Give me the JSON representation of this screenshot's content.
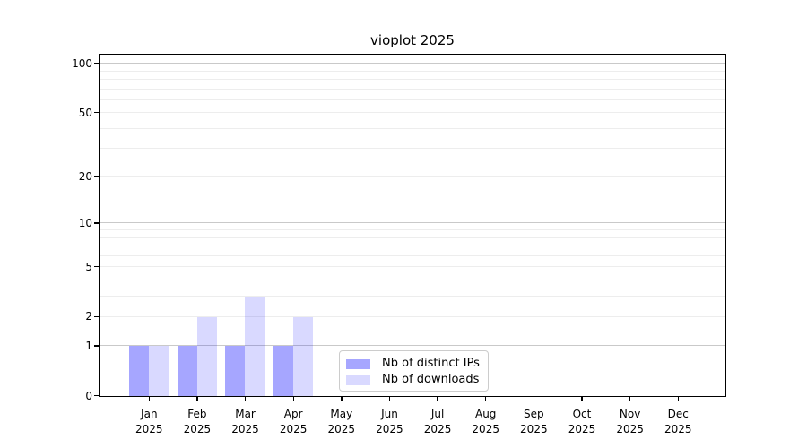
{
  "chart_data": {
    "type": "bar",
    "title": "vioplot 2025",
    "x_categories": [
      "Jan",
      "Feb",
      "Mar",
      "Apr",
      "May",
      "Jun",
      "Jul",
      "Aug",
      "Sep",
      "Oct",
      "Nov",
      "Dec"
    ],
    "x_year": "2025",
    "series": [
      {
        "name": "Nb of distinct IPs",
        "color": "#0000ff59",
        "values": [
          1,
          1,
          1,
          1,
          0,
          0,
          0,
          0,
          0,
          0,
          0,
          0
        ]
      },
      {
        "name": "Nb of downloads",
        "color": "#0000ff26",
        "values": [
          1,
          2,
          3,
          2,
          0,
          0,
          0,
          0,
          0,
          0,
          0,
          0
        ]
      }
    ],
    "y_scale": "log1p",
    "ylim": [
      0,
      100
    ],
    "y_ticks": [
      0,
      1,
      2,
      5,
      10,
      20,
      50,
      100
    ],
    "grid_major": [
      1,
      10,
      100
    ],
    "grid_minor": [
      2,
      3,
      4,
      5,
      6,
      7,
      8,
      9,
      20,
      30,
      40,
      50,
      60,
      70,
      80,
      90
    ],
    "legend_position": "bottom-center",
    "colors": {
      "grid_major": "#c9c9c9",
      "grid_minor": "#ededed",
      "axis": "#000000",
      "legend_border": "#cccccc",
      "background": "#ffffff"
    }
  }
}
